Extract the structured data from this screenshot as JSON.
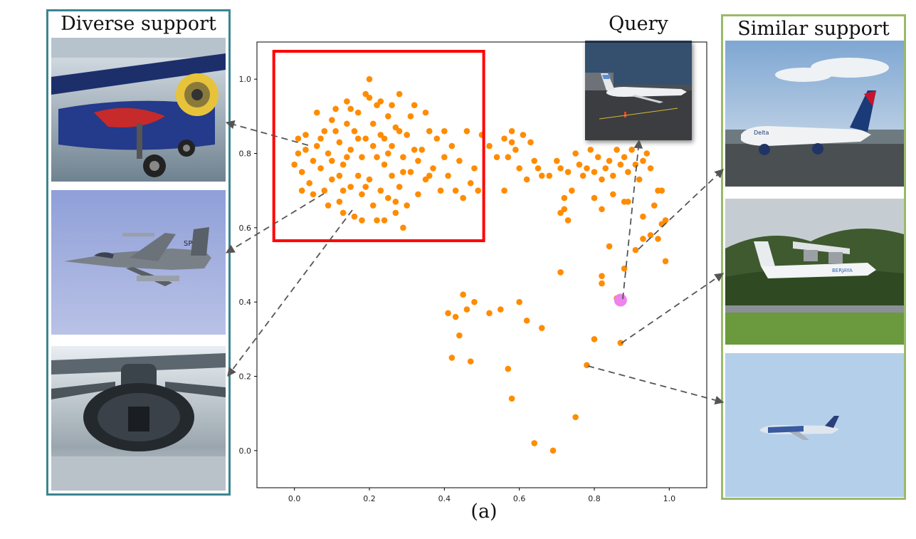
{
  "labels": {
    "diverse_title": "Diverse support",
    "similar_title": "Similar support",
    "query_title": "Query",
    "caption": "(a)"
  },
  "colors": {
    "points": "#ff8c00",
    "query_point": "#ee82ee",
    "highlight_box": "#ff0000",
    "diverse_border": "#3b8592",
    "similar_border": "#9aba6a",
    "arrow": "#555555"
  },
  "images": {
    "diverse": [
      "red-bull-biplane-photo",
      "f16-fighter-jet-photo",
      "aircraft-turret-photo"
    ],
    "similar": [
      "delta-airliner-photo",
      "propeller-plane-landing-photo",
      "airliner-in-sky-photo"
    ],
    "query": "business-jet-photo"
  },
  "chart_data": {
    "type": "scatter",
    "title": "",
    "xlabel": "",
    "ylabel": "",
    "xlim": [
      -0.1,
      1.1
    ],
    "ylim": [
      -0.1,
      1.1
    ],
    "xticks": [
      0.0,
      0.2,
      0.4,
      0.6,
      0.8,
      1.0
    ],
    "yticks": [
      0.0,
      0.2,
      0.4,
      0.6,
      0.8,
      1.0
    ],
    "tick_labels": [
      "0.0",
      "0.2",
      "0.4",
      "0.6",
      "0.8",
      "1.0"
    ],
    "grid": false,
    "query_point": {
      "x": 0.87,
      "y": 0.405
    },
    "highlight_region": {
      "x": [
        -0.055,
        0.505
      ],
      "y": [
        0.565,
        1.075
      ]
    },
    "points": [
      [
        0.0,
        0.77
      ],
      [
        0.01,
        0.84
      ],
      [
        0.01,
        0.8
      ],
      [
        0.02,
        0.75
      ],
      [
        0.03,
        0.85
      ],
      [
        0.04,
        0.72
      ],
      [
        0.05,
        0.69
      ],
      [
        0.05,
        0.78
      ],
      [
        0.06,
        0.82
      ],
      [
        0.07,
        0.76
      ],
      [
        0.08,
        0.7
      ],
      [
        0.08,
        0.86
      ],
      [
        0.09,
        0.8
      ],
      [
        0.1,
        0.73
      ],
      [
        0.1,
        0.89
      ],
      [
        0.11,
        0.92
      ],
      [
        0.12,
        0.67
      ],
      [
        0.12,
        0.83
      ],
      [
        0.13,
        0.77
      ],
      [
        0.13,
        0.64
      ],
      [
        0.14,
        0.88
      ],
      [
        0.14,
        0.94
      ],
      [
        0.15,
        0.71
      ],
      [
        0.15,
        0.81
      ],
      [
        0.16,
        0.86
      ],
      [
        0.16,
        0.63
      ],
      [
        0.17,
        0.74
      ],
      [
        0.17,
        0.91
      ],
      [
        0.18,
        0.79
      ],
      [
        0.18,
        0.69
      ],
      [
        0.19,
        0.96
      ],
      [
        0.19,
        0.84
      ],
      [
        0.2,
        1.0
      ],
      [
        0.2,
        0.73
      ],
      [
        0.21,
        0.88
      ],
      [
        0.21,
        0.66
      ],
      [
        0.22,
        0.79
      ],
      [
        0.22,
        0.93
      ],
      [
        0.23,
        0.7
      ],
      [
        0.23,
        0.85
      ],
      [
        0.24,
        0.62
      ],
      [
        0.24,
        0.77
      ],
      [
        0.25,
        0.9
      ],
      [
        0.25,
        0.68
      ],
      [
        0.26,
        0.82
      ],
      [
        0.26,
        0.74
      ],
      [
        0.27,
        0.64
      ],
      [
        0.27,
        0.87
      ],
      [
        0.28,
        0.96
      ],
      [
        0.28,
        0.71
      ],
      [
        0.29,
        0.79
      ],
      [
        0.29,
        0.6
      ],
      [
        0.3,
        0.85
      ],
      [
        0.3,
        0.66
      ],
      [
        0.31,
        0.75
      ],
      [
        0.31,
        0.9
      ],
      [
        0.32,
        0.93
      ],
      [
        0.33,
        0.78
      ],
      [
        0.33,
        0.69
      ],
      [
        0.34,
        0.81
      ],
      [
        0.35,
        0.73
      ],
      [
        0.36,
        0.86
      ],
      [
        0.37,
        0.76
      ],
      [
        0.38,
        0.84
      ],
      [
        0.39,
        0.7
      ],
      [
        0.4,
        0.79
      ],
      [
        0.41,
        0.74
      ],
      [
        0.42,
        0.82
      ],
      [
        0.43,
        0.7
      ],
      [
        0.44,
        0.78
      ],
      [
        0.45,
        0.68
      ],
      [
        0.46,
        0.86
      ],
      [
        0.47,
        0.72
      ],
      [
        0.48,
        0.76
      ],
      [
        0.49,
        0.7
      ],
      [
        0.1,
        0.78
      ],
      [
        0.12,
        0.74
      ],
      [
        0.18,
        0.62
      ],
      [
        0.22,
        0.62
      ],
      [
        0.27,
        0.67
      ],
      [
        0.11,
        0.86
      ],
      [
        0.15,
        0.92
      ],
      [
        0.21,
        0.82
      ],
      [
        0.26,
        0.93
      ],
      [
        0.09,
        0.66
      ],
      [
        0.03,
        0.81
      ],
      [
        0.19,
        0.71
      ],
      [
        0.35,
        0.91
      ],
      [
        0.06,
        0.91
      ],
      [
        0.14,
        0.79
      ],
      [
        0.24,
        0.84
      ],
      [
        0.29,
        0.75
      ],
      [
        0.32,
        0.81
      ],
      [
        0.17,
        0.84
      ],
      [
        0.02,
        0.7
      ],
      [
        0.07,
        0.84
      ],
      [
        0.13,
        0.7
      ],
      [
        0.23,
        0.94
      ],
      [
        0.28,
        0.86
      ],
      [
        0.36,
        0.74
      ],
      [
        0.4,
        0.86
      ],
      [
        0.2,
        0.95
      ],
      [
        0.25,
        0.8
      ],
      [
        0.5,
        0.85
      ],
      [
        0.52,
        0.82
      ],
      [
        0.54,
        0.79
      ],
      [
        0.56,
        0.84
      ],
      [
        0.57,
        0.79
      ],
      [
        0.58,
        0.83
      ],
      [
        0.59,
        0.81
      ],
      [
        0.6,
        0.76
      ],
      [
        0.61,
        0.85
      ],
      [
        0.62,
        0.73
      ],
      [
        0.63,
        0.83
      ],
      [
        0.56,
        0.7
      ],
      [
        0.58,
        0.86
      ],
      [
        0.64,
        0.78
      ],
      [
        0.65,
        0.76
      ],
      [
        0.66,
        0.74
      ],
      [
        0.68,
        0.74
      ],
      [
        0.7,
        0.78
      ],
      [
        0.71,
        0.76
      ],
      [
        0.72,
        0.68
      ],
      [
        0.73,
        0.75
      ],
      [
        0.74,
        0.7
      ],
      [
        0.75,
        0.8
      ],
      [
        0.76,
        0.77
      ],
      [
        0.77,
        0.74
      ],
      [
        0.78,
        0.76
      ],
      [
        0.79,
        0.81
      ],
      [
        0.8,
        0.75
      ],
      [
        0.81,
        0.79
      ],
      [
        0.82,
        0.73
      ],
      [
        0.83,
        0.76
      ],
      [
        0.84,
        0.78
      ],
      [
        0.85,
        0.74
      ],
      [
        0.86,
        0.81
      ],
      [
        0.87,
        0.77
      ],
      [
        0.88,
        0.79
      ],
      [
        0.89,
        0.75
      ],
      [
        0.9,
        0.81
      ],
      [
        0.91,
        0.77
      ],
      [
        0.92,
        0.73
      ],
      [
        0.93,
        0.78
      ],
      [
        0.94,
        0.8
      ],
      [
        0.95,
        0.76
      ],
      [
        0.96,
        0.66
      ],
      [
        0.98,
        0.7
      ],
      [
        0.71,
        0.64
      ],
      [
        0.72,
        0.65
      ],
      [
        0.73,
        0.62
      ],
      [
        0.8,
        0.68
      ],
      [
        0.82,
        0.65
      ],
      [
        0.85,
        0.69
      ],
      [
        0.88,
        0.67
      ],
      [
        0.93,
        0.63
      ],
      [
        0.95,
        0.58
      ],
      [
        0.98,
        0.61
      ],
      [
        0.99,
        0.62
      ],
      [
        0.71,
        0.48
      ],
      [
        0.82,
        0.47
      ],
      [
        0.82,
        0.45
      ],
      [
        0.84,
        0.55
      ],
      [
        0.86,
        0.41
      ],
      [
        0.88,
        0.49
      ],
      [
        0.91,
        0.54
      ],
      [
        0.93,
        0.57
      ],
      [
        0.97,
        0.57
      ],
      [
        0.99,
        0.51
      ],
      [
        0.97,
        0.7
      ],
      [
        0.89,
        0.67
      ],
      [
        0.41,
        0.37
      ],
      [
        0.43,
        0.36
      ],
      [
        0.45,
        0.42
      ],
      [
        0.46,
        0.38
      ],
      [
        0.48,
        0.4
      ],
      [
        0.44,
        0.31
      ],
      [
        0.42,
        0.25
      ],
      [
        0.47,
        0.24
      ],
      [
        0.52,
        0.37
      ],
      [
        0.55,
        0.38
      ],
      [
        0.57,
        0.22
      ],
      [
        0.58,
        0.14
      ],
      [
        0.6,
        0.4
      ],
      [
        0.62,
        0.35
      ],
      [
        0.64,
        0.02
      ],
      [
        0.66,
        0.33
      ],
      [
        0.69,
        0.0
      ],
      [
        0.75,
        0.09
      ],
      [
        0.78,
        0.23
      ],
      [
        0.8,
        0.3
      ],
      [
        0.87,
        0.29
      ]
    ]
  }
}
